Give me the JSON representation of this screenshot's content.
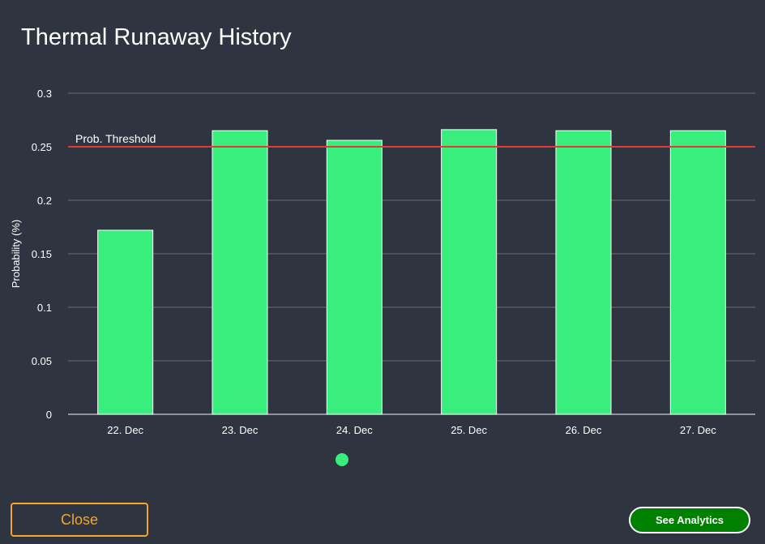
{
  "title": "Thermal Runaway History",
  "buttons": {
    "close_label": "Close",
    "analytics_label": "See Analytics"
  },
  "colors": {
    "background": "#2e3440",
    "bar": "#38ef7d",
    "threshold": "#e53935",
    "close_accent": "#f5a623",
    "analytics_bg": "#008000"
  },
  "chart_data": {
    "type": "bar",
    "categories": [
      "22. Dec",
      "23. Dec",
      "24. Dec",
      "25. Dec",
      "26. Dec",
      "27. Dec"
    ],
    "values": [
      0.172,
      0.265,
      0.256,
      0.266,
      0.265,
      0.265
    ],
    "ylabel": "Probability (%)",
    "xlabel": "",
    "ylim": [
      0,
      0.3
    ],
    "yticks": [
      "0",
      "0.05",
      "0.1",
      "0.15",
      "0.2",
      "0.25",
      "0.3"
    ],
    "ytick_values": [
      0,
      0.05,
      0.1,
      0.15,
      0.2,
      0.25,
      0.3
    ],
    "threshold": {
      "value": 0.25,
      "label": "Prob. Threshold"
    },
    "grid": true,
    "legend": "bottom-center"
  }
}
